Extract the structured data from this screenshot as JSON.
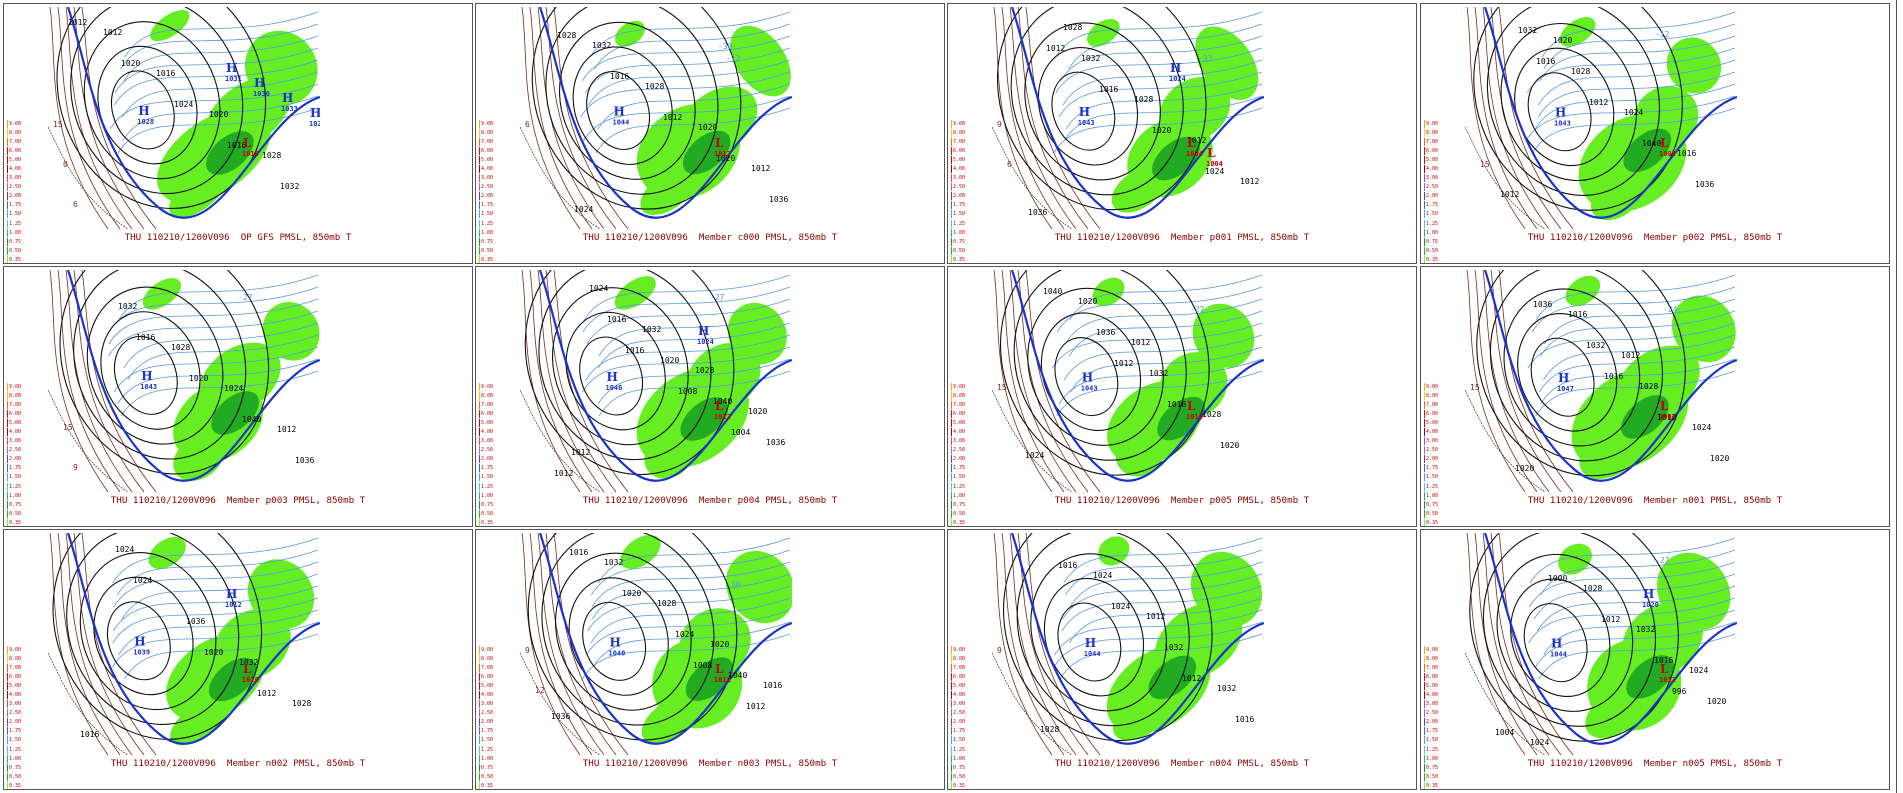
{
  "panels": [
    {
      "caption": "THU 110210/1200V096  OP GFS PMSL, 850mb T",
      "highs": [
        "1028",
        "1031",
        "1030",
        "1033",
        "1028",
        "1028"
      ],
      "lows": [
        "1016"
      ],
      "isobars": [
        "1012",
        "1020",
        "1024",
        "1016",
        "1032",
        "1012",
        "1016",
        "1020",
        "1028"
      ],
      "temps": [
        "15",
        "0",
        "6"
      ]
    },
    {
      "caption": "THU 110210/1200V096  Member c000 PMSL, 850mb T",
      "highs": [
        "1044"
      ],
      "lows": [
        "1012"
      ],
      "isobars": [
        "1028",
        "1016",
        "1012",
        "1020",
        "1036",
        "1032",
        "1028",
        "1020",
        "1012",
        "1024"
      ],
      "temps": [
        "6",
        "-30",
        "-12"
      ]
    },
    {
      "caption": "THU 110210/1200V096  Member p001 PMSL, 850mb T",
      "highs": [
        "1043",
        "1024"
      ],
      "lows": [
        "1004",
        "1004"
      ],
      "isobars": [
        "1012",
        "1016",
        "1020",
        "1024",
        "1036",
        "1032",
        "1028",
        "1012",
        "1012",
        "1028"
      ],
      "temps": [
        "9",
        "6",
        "-33"
      ]
    },
    {
      "caption": "THU 110210/1200V096  Member p002 PMSL, 850mb T",
      "highs": [
        "1043"
      ],
      "lows": [
        "1008"
      ],
      "isobars": [
        "1016",
        "1012",
        "1040",
        "1036",
        "1032",
        "1028",
        "1024",
        "1016",
        "1012",
        "1020"
      ],
      "temps": [
        "-12",
        "15"
      ]
    },
    {
      "caption": "THU 110210/1200V096  Member p003 PMSL, 850mb T",
      "highs": [
        "1043"
      ],
      "lows": [],
      "isobars": [
        "1016",
        "1020",
        "1040",
        "1036",
        "1032",
        "1028",
        "1024",
        "1012"
      ],
      "temps": [
        "-27",
        "15",
        "9"
      ]
    },
    {
      "caption": "THU 110210/1200V096  Member p004 PMSL, 850mb T",
      "highs": [
        "1046",
        "1024"
      ],
      "lows": [
        "1012"
      ],
      "isobars": [
        "1016",
        "1008",
        "1004",
        "1012",
        "1016",
        "1020",
        "1040",
        "1036",
        "1024",
        "1032",
        "1028",
        "1020",
        "1012"
      ],
      "temps": [
        "-27"
      ]
    },
    {
      "caption": "THU 110210/1200V096  Member p005 PMSL, 850mb T",
      "highs": [
        "1043"
      ],
      "lows": [
        "1016"
      ],
      "isobars": [
        "1012",
        "1016",
        "1020",
        "1040",
        "1036",
        "1032",
        "1028",
        "1024",
        "1020",
        "1012"
      ],
      "temps": [
        "15",
        "-27"
      ]
    },
    {
      "caption": "THU 110210/1200V096  Member n001 PMSL, 850mb T",
      "highs": [
        "1047"
      ],
      "lows": [
        "1004"
      ],
      "isobars": [
        "1016",
        "1012",
        "1020",
        "1036",
        "1032",
        "1028",
        "1024",
        "1020",
        "1016",
        "1012"
      ],
      "temps": [
        "15",
        "-24"
      ]
    },
    {
      "caption": "THU 110210/1200V096  Member n002 PMSL, 850mb T",
      "highs": [
        "1039",
        "1012"
      ],
      "lows": [
        "1016"
      ],
      "isobars": [
        "1020",
        "1012",
        "1016",
        "1024",
        "1036",
        "1032",
        "1028",
        "1024"
      ],
      "temps": []
    },
    {
      "caption": "THU 110210/1200V096  Member n003 PMSL, 850mb T",
      "highs": [
        "1040"
      ],
      "lows": [
        "1012"
      ],
      "isobars": [
        "1008",
        "1012",
        "1016",
        "1020",
        "1024",
        "1040",
        "1036",
        "1032",
        "1028",
        "1020",
        "1016"
      ],
      "temps": [
        "9",
        "12",
        "-30"
      ]
    },
    {
      "caption": "THU 110210/1200V096  Member n004 PMSL, 850mb T",
      "highs": [
        "1044"
      ],
      "lows": [],
      "isobars": [
        "1012",
        "1016",
        "1016",
        "1024",
        "1032",
        "1032",
        "1028",
        "1024",
        "1012"
      ],
      "temps": [
        "9"
      ]
    },
    {
      "caption": "THU 110210/1200V096  Member n005 PMSL, 850mb T",
      "highs": [
        "1044",
        "1020"
      ],
      "lows": [
        "1012"
      ],
      "isobars": [
        "996",
        "1004",
        "1000",
        "1012",
        "1016",
        "1020",
        "1024",
        "1028",
        "1032",
        "1024"
      ],
      "temps": [
        "-27"
      ]
    }
  ],
  "legend": {
    "labels": [
      "9.00",
      "8.00",
      "7.00",
      "6.00",
      "5.00",
      "4.00",
      "3.00",
      "2.50",
      "2.00",
      "1.75",
      "1.50",
      "1.25",
      "1.00",
      "0.75",
      "0.50",
      "0.35",
      "0.25",
      "0.10",
      "0.01"
    ],
    "colors": [
      "#ffaa00",
      "#ffcc00",
      "#ff6600",
      "#ff0000",
      "#cc0000",
      "#990000",
      "#cc33cc",
      "#9966cc",
      "#6633cc",
      "#3366ff",
      "#33aaff",
      "#33ccff",
      "#00cc66",
      "#009933",
      "#00cc00",
      "#66ff33",
      "#99ff66",
      "#ccff99",
      "#ffffff"
    ]
  },
  "colors": {
    "precip_light": "#66ee22",
    "precip_dark": "#22aa22",
    "isobar": "#111111",
    "isotherm": "#5599dd",
    "freezing_line": "#1a33cc",
    "high_label": "#1a33cc",
    "low_label": "#cc0000",
    "warm_isotherm": "#7a2a20",
    "caption": "#8b0000"
  }
}
